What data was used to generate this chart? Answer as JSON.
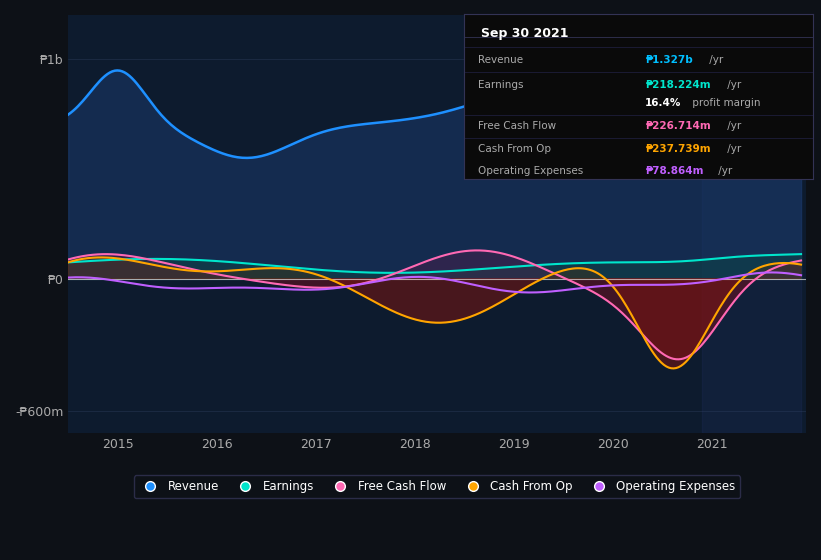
{
  "bg_color": "#0d1117",
  "plot_bg_color": "#0d1b2e",
  "title_box": {
    "date": "Sep 30 2021",
    "rows": [
      {
        "label": "Revenue",
        "value": "₱1.327b",
        "suffix": " /yr",
        "value_color": "#00bfff"
      },
      {
        "label": "Earnings",
        "value": "₱218.224m",
        "suffix": " /yr",
        "value_color": "#00e5cc"
      },
      {
        "label": "",
        "value": "16.4%",
        "suffix": " profit margin",
        "value_color": "#ffffff"
      },
      {
        "label": "Free Cash Flow",
        "value": "₱226.714m",
        "suffix": " /yr",
        "value_color": "#ff69b4"
      },
      {
        "label": "Cash From Op",
        "value": "₱237.739m",
        "suffix": " /yr",
        "value_color": "#ffa500"
      },
      {
        "label": "Operating Expenses",
        "value": "₱78.864m",
        "suffix": " /yr",
        "value_color": "#bf5fff"
      }
    ]
  },
  "ylim": [
    -700,
    1200
  ],
  "yticks": [
    -600,
    0,
    1000
  ],
  "ytick_labels": [
    "-₱600m",
    "₱0",
    "₱1b"
  ],
  "xtick_labels": [
    "2015",
    "2016",
    "2017",
    "2018",
    "2019",
    "2020",
    "2021"
  ],
  "series": {
    "revenue": {
      "color": "#1e90ff",
      "fill_color": "#1a3a6b"
    },
    "earnings": {
      "color": "#00e5cc",
      "fill_color": "#0a4a40"
    },
    "free_cash_flow": {
      "color": "#ff69b4"
    },
    "cash_from_op": {
      "color": "#ffa500"
    },
    "operating_expenses": {
      "color": "#bf5fff"
    }
  },
  "legend": [
    {
      "label": "Revenue",
      "color": "#1e90ff"
    },
    {
      "label": "Earnings",
      "color": "#00e5cc"
    },
    {
      "label": "Free Cash Flow",
      "color": "#ff69b4"
    },
    {
      "label": "Cash From Op",
      "color": "#ffa500"
    },
    {
      "label": "Operating Expenses",
      "color": "#bf5fff"
    }
  ]
}
